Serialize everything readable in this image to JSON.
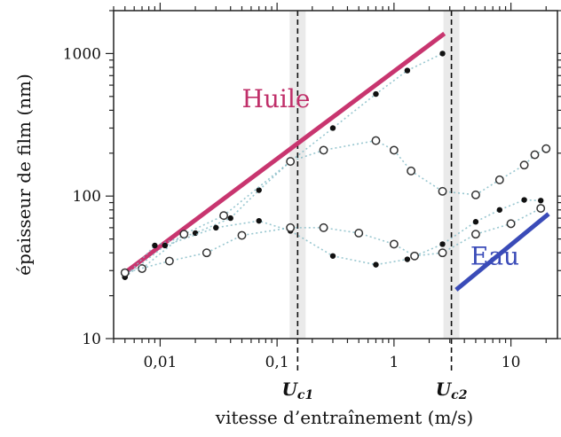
{
  "chart_data": {
    "type": "scatter",
    "title": "",
    "xlabel": "vitesse d’entraînement (m/s)",
    "ylabel": "épaisseur de film (nm)",
    "xscale": "log",
    "yscale": "log",
    "xlim": [
      0.004,
      25
    ],
    "ylim": [
      10,
      2000
    ],
    "x_ticks": [
      {
        "value": 0.01,
        "label": "0,01"
      },
      {
        "value": 0.1,
        "label": "0,1"
      },
      {
        "value": 1,
        "label": "1"
      },
      {
        "value": 10,
        "label": "10"
      }
    ],
    "y_ticks": [
      {
        "value": 10,
        "label": "10"
      },
      {
        "value": 100,
        "label": "100"
      },
      {
        "value": 1000,
        "label": "1000"
      }
    ],
    "grid": false,
    "critical_speeds": [
      {
        "label_main": "U",
        "label_sub": "c1",
        "x": 0.15
      },
      {
        "label_main": "U",
        "label_sub": "c2",
        "x": 3.1
      }
    ],
    "annotations": [
      {
        "text": "Huile",
        "x": 0.05,
        "y": 420,
        "color": "#c0306a"
      },
      {
        "text": "Eau",
        "x": 4.5,
        "y": 33,
        "color": "#3a4bb8"
      }
    ],
    "lines": [
      {
        "text_ref": "Huile",
        "color": "#c8356f",
        "x": [
          0.005,
          2.7
        ],
        "y": [
          29,
          1380
        ]
      },
      {
        "text_ref": "Eau",
        "color": "#3a4bb8",
        "x": [
          3.4,
          21
        ],
        "y": [
          22,
          75
        ]
      }
    ],
    "series": [
      {
        "marker": "filled",
        "x": [
          0.005,
          0.009,
          0.02,
          0.04,
          0.07,
          0.13,
          0.3,
          0.7,
          1.3,
          2.6
        ],
        "y": [
          27,
          45,
          55,
          70,
          110,
          175,
          300,
          520,
          760,
          1000
        ]
      },
      {
        "marker": "open",
        "x": [
          0.007,
          0.016,
          0.035,
          0.13,
          0.25,
          0.7,
          1.0,
          1.4,
          2.6,
          5,
          8,
          13,
          16,
          20
        ],
        "y": [
          31,
          54,
          73,
          175,
          210,
          245,
          210,
          150,
          108,
          102,
          130,
          165,
          195,
          215
        ]
      },
      {
        "marker": "filled",
        "x": [
          0.005,
          0.011,
          0.03,
          0.07,
          0.13,
          0.3,
          0.7,
          1.3,
          2.6,
          5,
          8,
          13,
          18
        ],
        "y": [
          27,
          45,
          60,
          67,
          57,
          38,
          33,
          36,
          46,
          66,
          80,
          94,
          93
        ]
      },
      {
        "marker": "open",
        "x": [
          0.005,
          0.012,
          0.025,
          0.05,
          0.13,
          0.25,
          0.5,
          1.0,
          1.5,
          2.6,
          5,
          10,
          18
        ],
        "y": [
          29,
          35,
          40,
          53,
          60,
          60,
          55,
          46,
          38,
          40,
          54,
          64,
          82
        ]
      }
    ]
  }
}
